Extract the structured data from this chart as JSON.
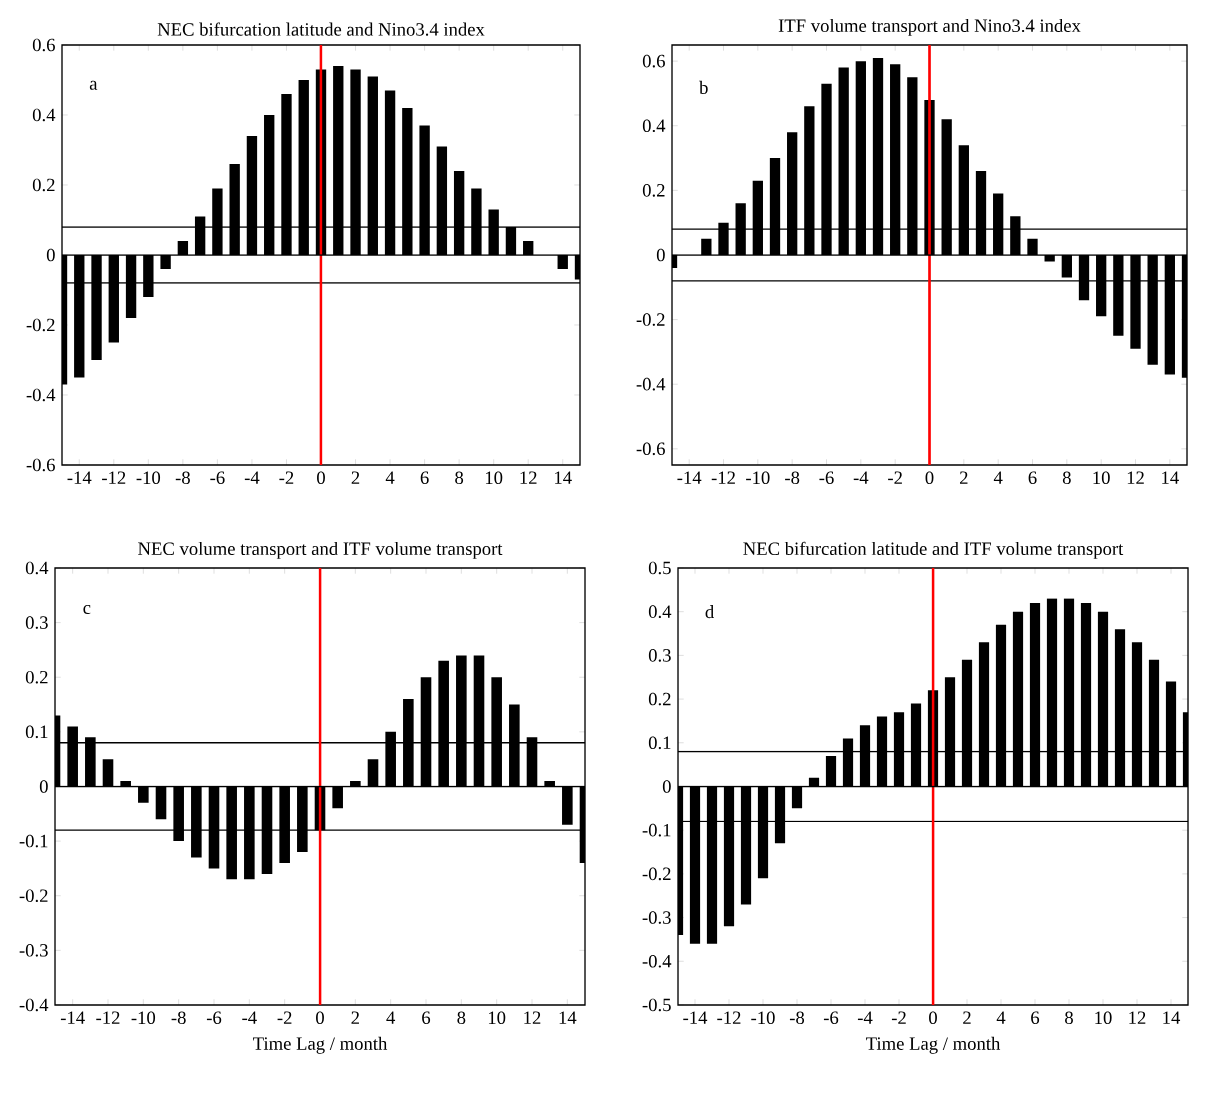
{
  "chart_data": [
    {
      "type": "bar",
      "title": "NEC bifurcation latitude and Nino3.4 index",
      "annotations": [
        "a"
      ],
      "color": "#000000",
      "x": [
        -15,
        -14,
        -13,
        -12,
        -11,
        -10,
        -9,
        -8,
        -7,
        -6,
        -5,
        -4,
        -3,
        -2,
        -1,
        0,
        1,
        2,
        3,
        4,
        5,
        6,
        7,
        8,
        9,
        10,
        11,
        12,
        13,
        14,
        15
      ],
      "values": [
        -0.37,
        -0.35,
        -0.3,
        -0.25,
        -0.18,
        -0.12,
        -0.04,
        0.04,
        0.11,
        0.19,
        0.26,
        0.34,
        0.4,
        0.46,
        0.5,
        0.53,
        0.54,
        0.53,
        0.51,
        0.47,
        0.42,
        0.37,
        0.31,
        0.24,
        0.19,
        0.13,
        0.08,
        0.04,
        0.0,
        -0.04,
        -0.07
      ],
      "xlim": [
        -15,
        15
      ],
      "ylim": [
        -0.6,
        0.6
      ],
      "xticks": [
        -14,
        -12,
        -10,
        -8,
        -6,
        -4,
        -2,
        0,
        2,
        4,
        6,
        8,
        10,
        12,
        14
      ],
      "yticks": [
        -0.6,
        -0.4,
        -0.2,
        0,
        0.2,
        0.4,
        0.6
      ],
      "ref_lines": [
        {
          "axis": "y",
          "value": 0.08,
          "color": "#000000"
        },
        {
          "axis": "y",
          "value": -0.08,
          "color": "#000000"
        },
        {
          "axis": "x",
          "value": 0,
          "color": "#ff0000"
        }
      ]
    },
    {
      "type": "bar",
      "title": "ITF volume transport and Nino3.4 index",
      "annotations": [
        "b"
      ],
      "color": "#000000",
      "x": [
        -15,
        -14,
        -13,
        -12,
        -11,
        -10,
        -9,
        -8,
        -7,
        -6,
        -5,
        -4,
        -3,
        -2,
        -1,
        0,
        1,
        2,
        3,
        4,
        5,
        6,
        7,
        8,
        9,
        10,
        11,
        12,
        13,
        14,
        15
      ],
      "values": [
        -0.04,
        0.0,
        0.05,
        0.1,
        0.16,
        0.23,
        0.3,
        0.38,
        0.46,
        0.53,
        0.58,
        0.6,
        0.61,
        0.59,
        0.55,
        0.48,
        0.42,
        0.34,
        0.26,
        0.19,
        0.12,
        0.05,
        -0.02,
        -0.07,
        -0.14,
        -0.19,
        -0.25,
        -0.29,
        -0.34,
        -0.37,
        -0.38
      ],
      "xlim": [
        -15,
        15
      ],
      "ylim": [
        -0.65,
        0.65
      ],
      "xticks": [
        -14,
        -12,
        -10,
        -8,
        -6,
        -4,
        -2,
        0,
        2,
        4,
        6,
        8,
        10,
        12,
        14
      ],
      "yticks": [
        -0.6,
        -0.4,
        -0.2,
        0,
        0.2,
        0.4,
        0.6
      ],
      "ref_lines": [
        {
          "axis": "y",
          "value": 0.08,
          "color": "#000000"
        },
        {
          "axis": "y",
          "value": -0.08,
          "color": "#000000"
        },
        {
          "axis": "x",
          "value": 0,
          "color": "#ff0000"
        }
      ]
    },
    {
      "type": "bar",
      "title": "NEC volume transport and ITF volume transport",
      "xlabel": "Time Lag / month",
      "annotations": [
        "c"
      ],
      "color": "#000000",
      "x": [
        -15,
        -14,
        -13,
        -12,
        -11,
        -10,
        -9,
        -8,
        -7,
        -6,
        -5,
        -4,
        -3,
        -2,
        -1,
        0,
        1,
        2,
        3,
        4,
        5,
        6,
        7,
        8,
        9,
        10,
        11,
        12,
        13,
        14,
        15
      ],
      "values": [
        0.13,
        0.11,
        0.09,
        0.05,
        0.01,
        -0.03,
        -0.06,
        -0.1,
        -0.13,
        -0.15,
        -0.17,
        -0.17,
        -0.16,
        -0.14,
        -0.12,
        -0.08,
        -0.04,
        0.01,
        0.05,
        0.1,
        0.16,
        0.2,
        0.23,
        0.24,
        0.24,
        0.2,
        0.15,
        0.09,
        0.01,
        -0.07,
        -0.14
      ],
      "xlim": [
        -15,
        15
      ],
      "ylim": [
        -0.4,
        0.4
      ],
      "xticks": [
        -14,
        -12,
        -10,
        -8,
        -6,
        -4,
        -2,
        0,
        2,
        4,
        6,
        8,
        10,
        12,
        14
      ],
      "yticks": [
        -0.4,
        -0.3,
        -0.2,
        -0.1,
        0,
        0.1,
        0.2,
        0.3,
        0.4
      ],
      "ref_lines": [
        {
          "axis": "y",
          "value": 0.08,
          "color": "#000000"
        },
        {
          "axis": "y",
          "value": -0.08,
          "color": "#000000"
        },
        {
          "axis": "x",
          "value": 0,
          "color": "#ff0000"
        }
      ]
    },
    {
      "type": "bar",
      "title": "NEC bifurcation latitude and ITF volume transport",
      "xlabel": "Time Lag / month",
      "annotations": [
        "d"
      ],
      "color": "#000000",
      "x": [
        -15,
        -14,
        -13,
        -12,
        -11,
        -10,
        -9,
        -8,
        -7,
        -6,
        -5,
        -4,
        -3,
        -2,
        -1,
        0,
        1,
        2,
        3,
        4,
        5,
        6,
        7,
        8,
        9,
        10,
        11,
        12,
        13,
        14,
        15
      ],
      "values": [
        -0.34,
        -0.36,
        -0.36,
        -0.32,
        -0.27,
        -0.21,
        -0.13,
        -0.05,
        0.02,
        0.07,
        0.11,
        0.14,
        0.16,
        0.17,
        0.19,
        0.22,
        0.25,
        0.29,
        0.33,
        0.37,
        0.4,
        0.42,
        0.43,
        0.43,
        0.42,
        0.4,
        0.36,
        0.33,
        0.29,
        0.24,
        0.17
      ],
      "xlim": [
        -15,
        15
      ],
      "ylim": [
        -0.5,
        0.5
      ],
      "xticks": [
        -14,
        -12,
        -10,
        -8,
        -6,
        -4,
        -2,
        0,
        2,
        4,
        6,
        8,
        10,
        12,
        14
      ],
      "yticks": [
        -0.5,
        -0.4,
        -0.3,
        -0.2,
        -0.1,
        0,
        0.1,
        0.2,
        0.3,
        0.4,
        0.5
      ],
      "ref_lines": [
        {
          "axis": "y",
          "value": 0.08,
          "color": "#000000"
        },
        {
          "axis": "y",
          "value": -0.08,
          "color": "#000000"
        },
        {
          "axis": "x",
          "value": 0,
          "color": "#ff0000"
        }
      ]
    }
  ]
}
